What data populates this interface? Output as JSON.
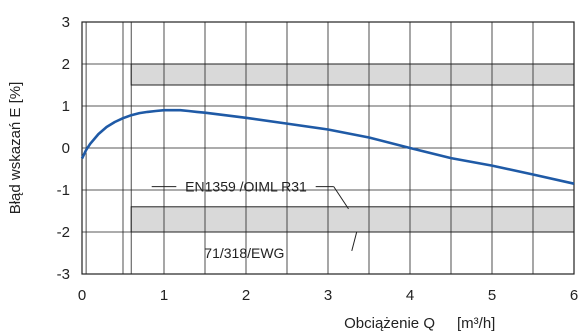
{
  "chart_data": {
    "type": "line",
    "xlabel": "Obciążenie Q",
    "xunit": "[m³/h]",
    "ylabel": "Błąd wskazań E [%]",
    "xlim": [
      0,
      6
    ],
    "ylim": [
      -3,
      3
    ],
    "x_ticks": [
      "0",
      "1",
      "2",
      "3",
      "4",
      "5",
      "6"
    ],
    "y_ticks": [
      "3",
      "2",
      "1",
      "0",
      "-1",
      "-2",
      "-3"
    ],
    "grid": true,
    "series": [
      {
        "color": "#1f5aa6",
        "x": [
          0,
          0.05,
          0.1,
          0.2,
          0.3,
          0.4,
          0.5,
          0.6,
          0.7,
          0.8,
          0.9,
          1.0,
          1.1,
          1.2,
          1.3,
          1.4,
          1.5,
          2.0,
          2.5,
          3.0,
          3.5,
          4.0,
          4.5,
          5.0,
          5.5,
          6.0
        ],
        "y": [
          -0.25,
          -0.05,
          0.1,
          0.33,
          0.5,
          0.62,
          0.71,
          0.78,
          0.83,
          0.86,
          0.88,
          0.9,
          0.9,
          0.9,
          0.88,
          0.86,
          0.84,
          0.72,
          0.58,
          0.44,
          0.25,
          0.0,
          -0.24,
          -0.42,
          -0.63,
          -0.85
        ]
      }
    ],
    "bands": [
      {
        "x": [
          0.6,
          6
        ],
        "y": [
          1.5,
          2.0
        ],
        "color": "#d9d9d9"
      },
      {
        "x": [
          0.6,
          6
        ],
        "y": [
          -2.0,
          -1.4
        ],
        "color": "#d9d9d9"
      }
    ],
    "annotations": [
      {
        "text": "EN1359 /OIML R31",
        "pointer": [
          3.25,
          -1.45
        ]
      },
      {
        "text": "71/318/EWG",
        "pointer": [
          3.35,
          -2.0
        ]
      }
    ]
  }
}
